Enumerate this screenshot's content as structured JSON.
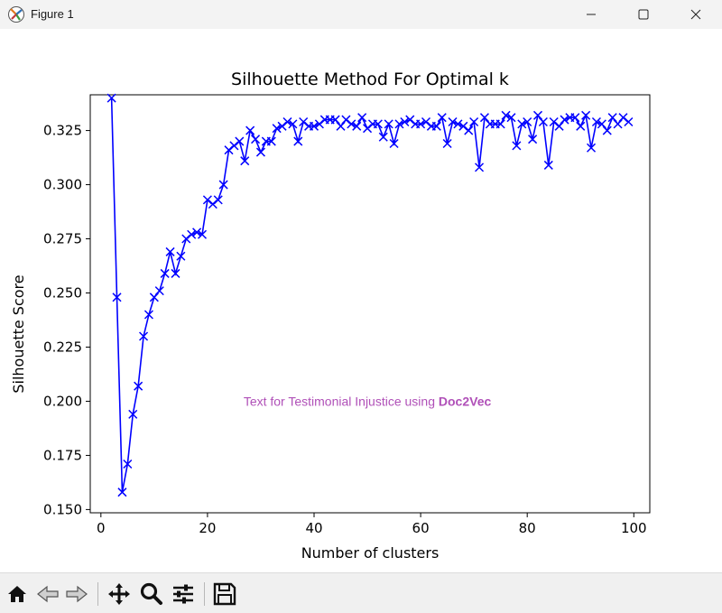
{
  "window": {
    "title": "Figure 1",
    "icon": "matplotlib-icon",
    "controls": [
      "minimize-icon",
      "maximize-icon",
      "close-icon"
    ]
  },
  "toolbar": {
    "buttons": [
      {
        "name": "home-button",
        "icon": "home-icon"
      },
      {
        "name": "back-button",
        "icon": "arrow-left-icon"
      },
      {
        "name": "forward-button",
        "icon": "arrow-right-icon"
      },
      {
        "name": "pan-button",
        "icon": "move-icon"
      },
      {
        "name": "zoom-button",
        "icon": "magnifier-icon"
      },
      {
        "name": "configure-subplots-button",
        "icon": "sliders-icon"
      },
      {
        "name": "save-button",
        "icon": "floppy-disk-icon"
      }
    ]
  },
  "chart_data": {
    "type": "line",
    "title": "Silhouette Method For Optimal k",
    "xlabel": "Number of clusters",
    "ylabel": "Silhouette Score",
    "xlim": [
      -2,
      103
    ],
    "ylim": [
      0.1485,
      0.3415
    ],
    "xticks": [
      0,
      20,
      40,
      60,
      80,
      100
    ],
    "yticks": [
      0.15,
      0.175,
      0.2,
      0.225,
      0.25,
      0.275,
      0.3,
      0.325
    ],
    "xtick_labels": [
      "0",
      "20",
      "40",
      "60",
      "80",
      "100"
    ],
    "ytick_labels": [
      "0.150",
      "0.175",
      "0.200",
      "0.225",
      "0.250",
      "0.275",
      "0.300",
      "0.325"
    ],
    "grid": false,
    "marker": "x",
    "color": "#0000ff",
    "annotation": {
      "text": "Text for Testimonial Injustice using ",
      "bold": "Doc2Vec",
      "color": "#b050b8",
      "x": 50,
      "y": 0.198
    },
    "x": [
      2,
      3,
      4,
      5,
      6,
      7,
      8,
      9,
      10,
      11,
      12,
      13,
      14,
      15,
      16,
      17,
      18,
      19,
      20,
      21,
      22,
      23,
      24,
      25,
      26,
      27,
      28,
      29,
      30,
      31,
      32,
      33,
      34,
      35,
      36,
      37,
      38,
      39,
      40,
      41,
      42,
      43,
      44,
      45,
      46,
      47,
      48,
      49,
      50,
      51,
      52,
      53,
      54,
      55,
      56,
      57,
      58,
      59,
      60,
      61,
      62,
      63,
      64,
      65,
      66,
      67,
      68,
      69,
      70,
      71,
      72,
      73,
      74,
      75,
      76,
      77,
      78,
      79,
      80,
      81,
      82,
      83,
      84,
      85,
      86,
      87,
      88,
      89,
      90,
      91,
      92,
      93,
      94,
      95,
      96,
      97,
      98,
      99
    ],
    "y": [
      0.34,
      0.248,
      0.158,
      0.171,
      0.194,
      0.207,
      0.23,
      0.24,
      0.248,
      0.251,
      0.259,
      0.269,
      0.259,
      0.267,
      0.275,
      0.277,
      0.278,
      0.277,
      0.293,
      0.291,
      0.293,
      0.3,
      0.316,
      0.318,
      0.32,
      0.311,
      0.325,
      0.321,
      0.315,
      0.32,
      0.32,
      0.326,
      0.327,
      0.329,
      0.328,
      0.32,
      0.329,
      0.327,
      0.327,
      0.328,
      0.33,
      0.33,
      0.33,
      0.327,
      0.33,
      0.328,
      0.327,
      0.331,
      0.326,
      0.328,
      0.328,
      0.322,
      0.328,
      0.319,
      0.328,
      0.329,
      0.33,
      0.328,
      0.328,
      0.329,
      0.327,
      0.327,
      0.331,
      0.319,
      0.329,
      0.328,
      0.327,
      0.325,
      0.329,
      0.308,
      0.331,
      0.328,
      0.328,
      0.328,
      0.332,
      0.331,
      0.318,
      0.328,
      0.329,
      0.321,
      0.332,
      0.329,
      0.309,
      0.329,
      0.327,
      0.33,
      0.331,
      0.331,
      0.327,
      0.332,
      0.317,
      0.329,
      0.328,
      0.325,
      0.331,
      0.328,
      0.331,
      0.329
    ]
  }
}
